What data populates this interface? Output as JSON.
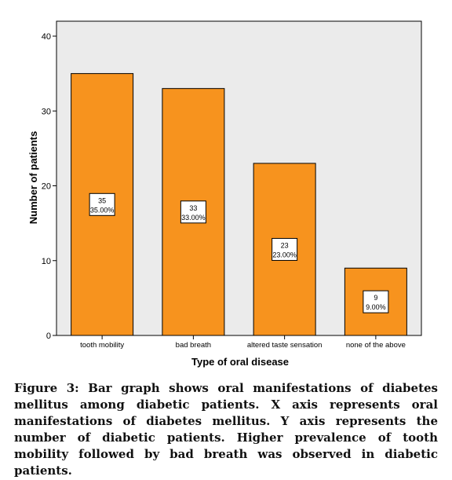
{
  "chart_data": {
    "type": "bar",
    "categories": [
      "tooth mobility",
      "bad breath",
      "altered taste sensation",
      "none of the above"
    ],
    "values": [
      35,
      33,
      23,
      9
    ],
    "value_labels": [
      "35",
      "33",
      "23",
      "9"
    ],
    "percent_labels": [
      "35.00%",
      "33.00%",
      "23.00%",
      "9.00%"
    ],
    "xlabel": "Type of oral disease",
    "ylabel": "Number of patients",
    "ylim": [
      0,
      40
    ],
    "yticks": [
      "0",
      "10",
      "20",
      "30",
      "40"
    ],
    "grid": false,
    "bar_color": "#f7931e",
    "plot_background": "#ebebeb"
  },
  "caption": "Figure 3: Bar graph shows oral manifestations of diabetes mellitus among diabetic patients. X axis represents oral manifestations of diabetes mellitus. Y axis represents the number of diabetic patients. Higher prevalence of tooth mobility followed by bad breath was observed in diabetic patients."
}
